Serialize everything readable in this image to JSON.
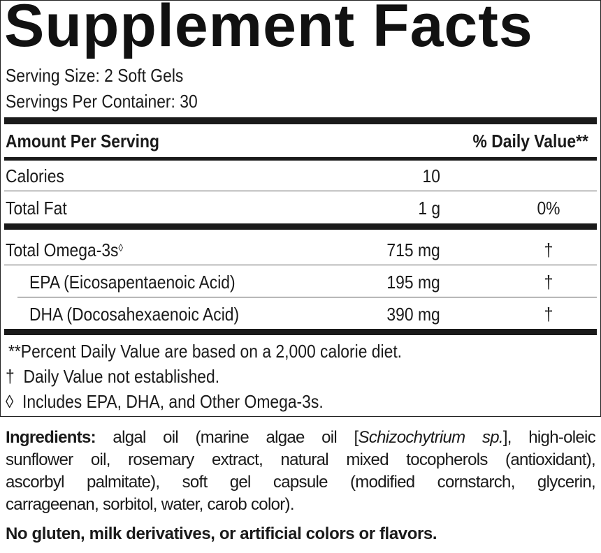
{
  "title": "Supplement Facts",
  "serving_size": "Serving Size: 2 Soft Gels",
  "servings_per_container": "Servings Per Container: 30",
  "header": {
    "amount": "Amount Per Serving",
    "dv": "% Daily Value**"
  },
  "rows": [
    {
      "name": "Calories",
      "amount": "10",
      "dv": ""
    },
    {
      "name": "Total Fat",
      "amount": "1 g",
      "dv": "0%"
    },
    {
      "name": "Total Omega-3s",
      "mark": "◊",
      "amount": "715 mg",
      "dv": "†"
    },
    {
      "name": "EPA (Eicosapentaenoic Acid)",
      "amount": "195 mg",
      "dv": "†"
    },
    {
      "name": "DHA (Docosahexaenoic Acid)",
      "amount": "390 mg",
      "dv": "†"
    }
  ],
  "footnotes": [
    "**Percent Daily Value are based on a 2,000 calorie diet.",
    "†  Daily Value not established.",
    "◊  Includes EPA, DHA, and Other Omega-3s."
  ],
  "ingredients": {
    "label": "Ingredients:",
    "line1_a": " algal oil (marine algae oil [",
    "line1_italic": "Schizochytrium sp.",
    "line1_b": "], high-oleic",
    "line2": "sunflower oil, rosemary extract, natural mixed tocopherols (antioxidant),",
    "line3": "ascorbyl palmitate), soft gel capsule (modified cornstarch, glycerin,",
    "line4": "carrageenan, sorbitol, water, carob color)."
  },
  "allergen_statement": "No gluten, milk derivatives, or artificial colors or flavors."
}
